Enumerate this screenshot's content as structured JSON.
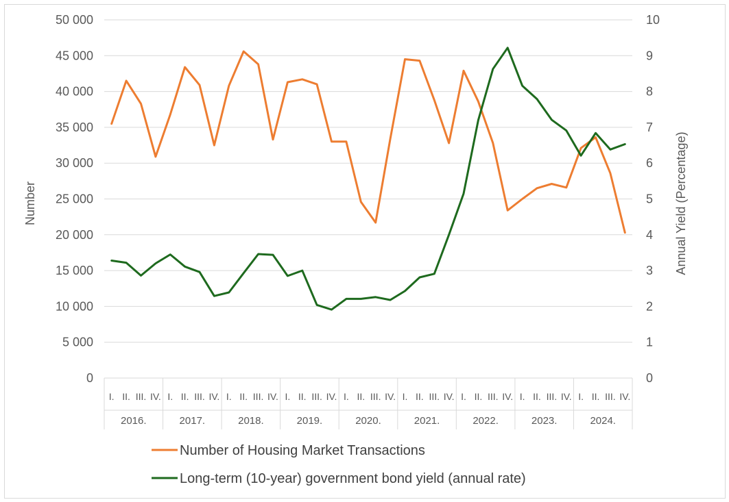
{
  "chart_data": {
    "type": "line",
    "title": "",
    "ylabel": "Number",
    "y2label": "Annual  Yield (Percentage)",
    "ylim": [
      0,
      50000
    ],
    "y2lim": [
      0,
      10
    ],
    "yticks": [
      "0",
      "5 000",
      "10 000",
      "15 000",
      "20 000",
      "25 000",
      "30 000",
      "35 000",
      "40 000",
      "45 000",
      "50 000"
    ],
    "y2ticks": [
      "0",
      "1",
      "2",
      "3",
      "4",
      "5",
      "6",
      "7",
      "8",
      "9",
      "10"
    ],
    "grid": true,
    "legend_position": "bottom",
    "quarters": [
      "I.",
      "II.",
      "III.",
      "IV."
    ],
    "years": [
      "2016.",
      "2017.",
      "2018.",
      "2019.",
      "2020.",
      "2021.",
      "2022.",
      "2023.",
      "2024."
    ],
    "series": [
      {
        "name": "Number of Housing Market Transactions",
        "axis": "left",
        "color": "#ED7D31",
        "values": [
          35500,
          41500,
          38300,
          30900,
          36800,
          43400,
          40900,
          32500,
          40800,
          45600,
          43800,
          33300,
          41300,
          41700,
          41000,
          33000,
          33000,
          24600,
          21700,
          33400,
          44500,
          44300,
          38800,
          32800,
          42900,
          38600,
          32800,
          23400,
          25000,
          26500,
          27100,
          26600,
          32100,
          33600,
          28600,
          20300
        ]
      },
      {
        "name": "Long-term (10-year) government bond yield (annual rate)",
        "axis": "right",
        "color": "#1E6A1E",
        "values": [
          3.28,
          3.22,
          2.86,
          3.2,
          3.45,
          3.11,
          2.96,
          2.29,
          2.39,
          2.93,
          3.46,
          3.44,
          2.85,
          3.0,
          2.04,
          1.91,
          2.21,
          2.21,
          2.26,
          2.18,
          2.43,
          2.81,
          2.91,
          4.0,
          5.15,
          7.2,
          8.63,
          9.22,
          8.16,
          7.79,
          7.21,
          6.91,
          6.21,
          6.84,
          6.38,
          6.53
        ]
      }
    ]
  }
}
